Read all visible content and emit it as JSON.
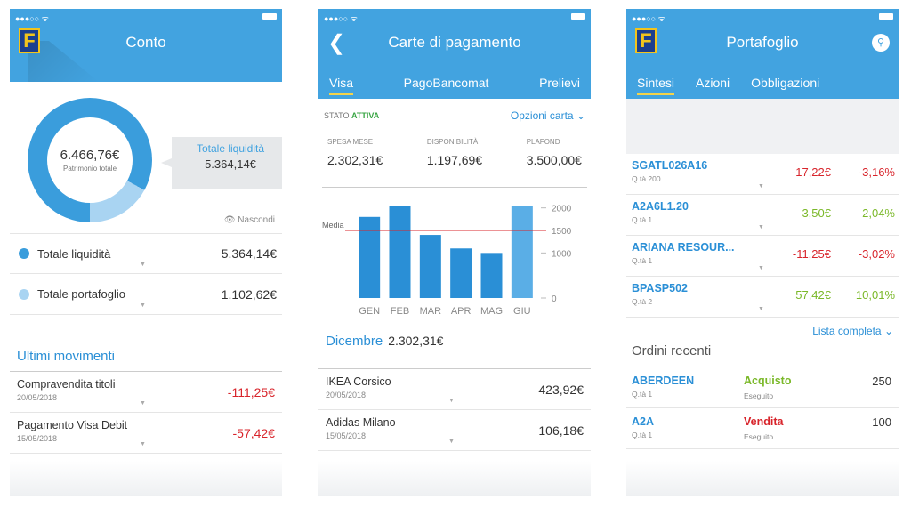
{
  "conto": {
    "title": "Conto",
    "logo": "F",
    "patrimonio_value": "6.466,76€",
    "patrimonio_label": "Patrimonio totale",
    "callout_label": "Totale liquidità",
    "callout_value": "5.364,14€",
    "hide_label": "Nascondi",
    "liquidita_share": 0.83,
    "rows": [
      {
        "label": "Totale liquidità",
        "value": "5.364,14€",
        "color": "#3a9ddc"
      },
      {
        "label": "Totale portafoglio",
        "value": "1.102,62€",
        "color": "#a9d4f2"
      }
    ],
    "movements_title": "Ultimi movimenti",
    "movements": [
      {
        "title": "Compravendita titoli",
        "date": "20/05/2018",
        "amount": "-111,25€"
      },
      {
        "title": "Pagamento Visa Debit",
        "date": "15/05/2018",
        "amount": "-57,42€"
      }
    ]
  },
  "carte": {
    "title": "Carte di pagamento",
    "back_icon": "chevron-left-icon",
    "tabs": [
      "Visa",
      "PagoBancomat",
      "Prelievi"
    ],
    "status_label": "STATO",
    "status_value": "ATTIVA",
    "options_label": "Opzioni carta",
    "stats": [
      {
        "label": "SPESA MESE",
        "value": "2.302,31€"
      },
      {
        "label": "DISPONIBILITÀ",
        "value": "1.197,69€"
      },
      {
        "label": "PLAFOND",
        "value": "3.500,00€"
      }
    ],
    "month_name": "Dicembre",
    "month_total": "2.302,31€",
    "transactions": [
      {
        "title": "IKEA Corsico",
        "date": "20/05/2018",
        "amount": "423,92€"
      },
      {
        "title": "Adidas Milano",
        "date": "15/05/2018",
        "amount": "106,18€"
      }
    ]
  },
  "chart_data": {
    "type": "bar",
    "categories": [
      "GEN",
      "FEB",
      "MAR",
      "APR",
      "MAG",
      "GIU"
    ],
    "values": [
      1800,
      2050,
      1400,
      1100,
      1000,
      2050
    ],
    "average_label": "Media",
    "average": 1500,
    "yticks": [
      0,
      1000,
      1500,
      2000
    ],
    "ylim": [
      0,
      2250
    ],
    "bar_color": "#2a8fd6",
    "last_bar_color": "#5aaee6",
    "average_color": "#d8242b"
  },
  "portafoglio": {
    "title": "Portafoglio",
    "logo": "F",
    "search_icon": "search-icon",
    "tabs": [
      "Sintesi",
      "Azioni",
      "Obbligazioni"
    ],
    "positions": [
      {
        "name": "SGATL026A16",
        "qty": "Q.tà 200",
        "value": "-17,22€",
        "pct": "-3,16%",
        "trend": "neg"
      },
      {
        "name": "A2A6L1.20",
        "qty": "Q.tà 1",
        "value": "3,50€",
        "pct": "2,04%",
        "trend": "pos"
      },
      {
        "name": "ARIANA RESOUR...",
        "qty": "Q.tà 1",
        "value": "-11,25€",
        "pct": "-3,02%",
        "trend": "neg"
      },
      {
        "name": "BPASP502",
        "qty": "Q.tà 2",
        "value": "57,42€",
        "pct": "10,01%",
        "trend": "pos"
      }
    ],
    "full_list_label": "Lista completa",
    "orders_title": "Ordini recenti",
    "orders": [
      {
        "name": "ABERDEEN",
        "qty": "Q.tà 1",
        "type": "Acquisto",
        "status": "Eseguito",
        "quantity": "250",
        "kind": "buy"
      },
      {
        "name": "A2A",
        "qty": "Q.tà 1",
        "type": "Vendita",
        "status": "Eseguito",
        "quantity": "100",
        "kind": "sell"
      }
    ]
  }
}
